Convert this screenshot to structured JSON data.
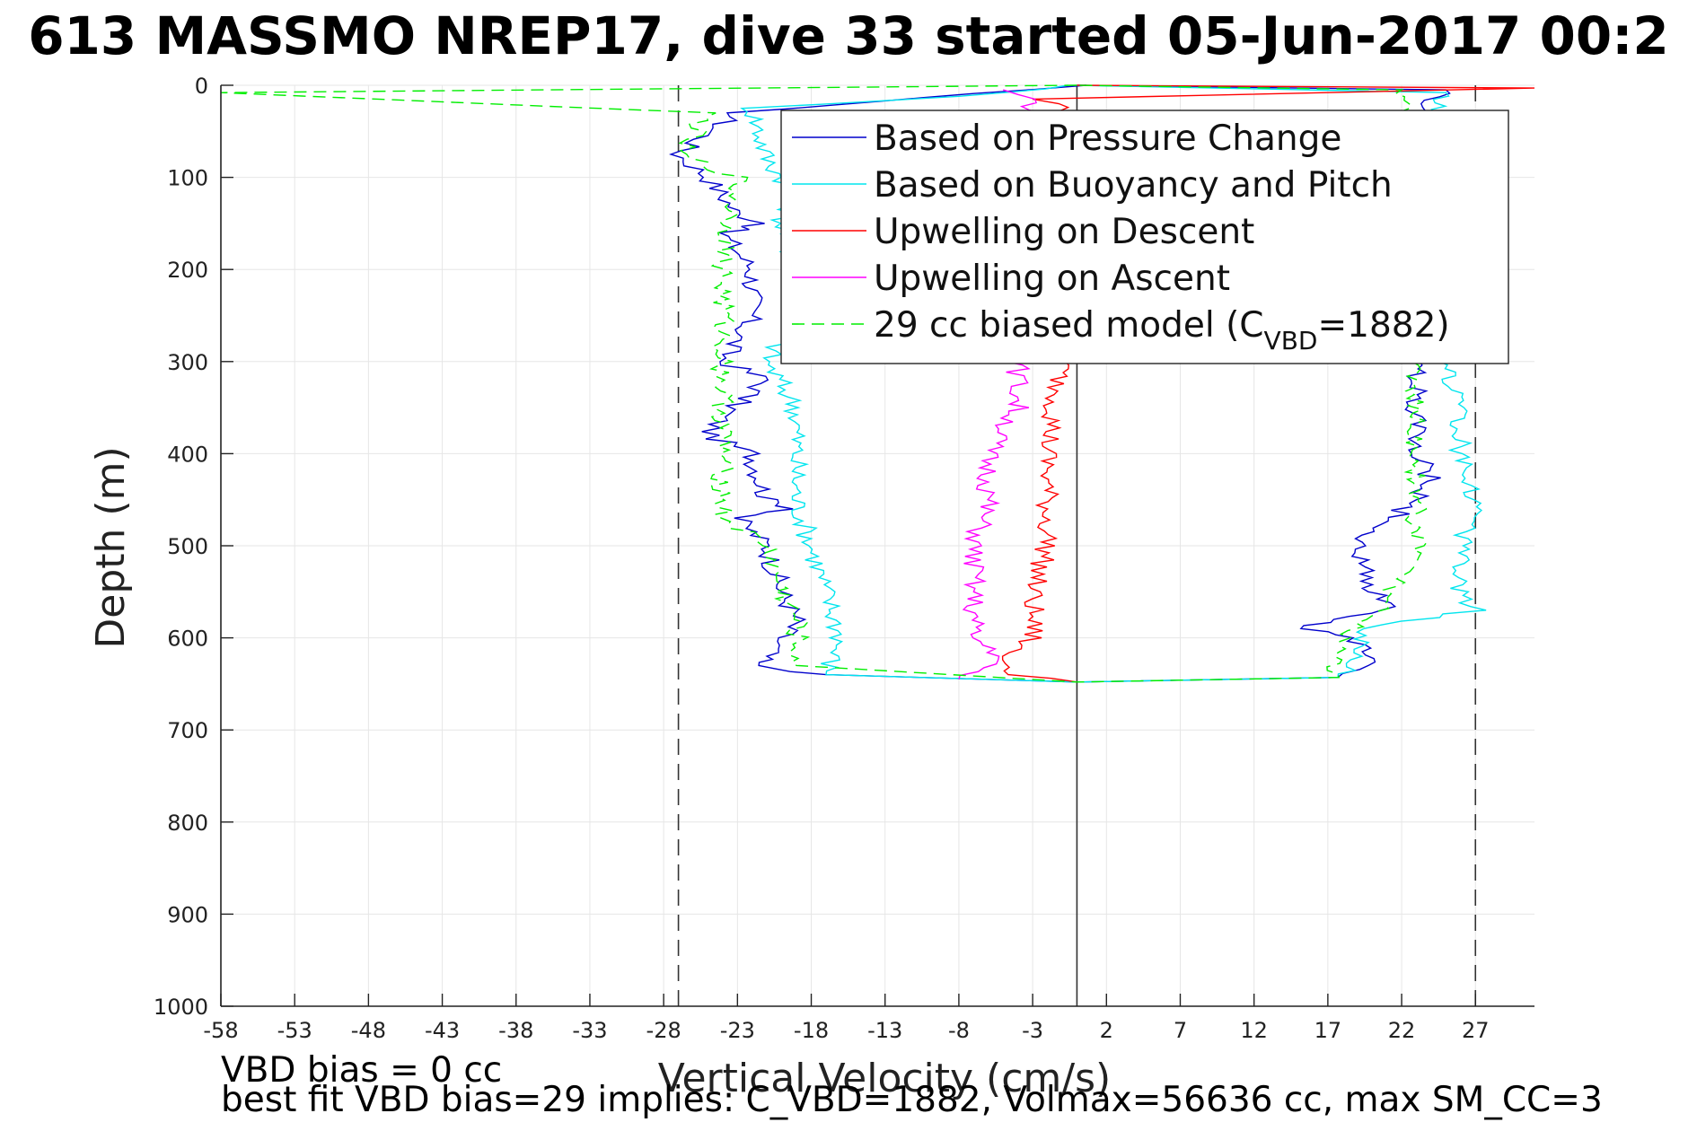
{
  "chart_data": {
    "type": "line",
    "title": "613 MASSMO NREP17, dive 33 started 05-Jun-2017 00:2",
    "xlabel": "Vertical Velocity (cm/s)",
    "ylabel": "Depth (m)",
    "xlim": [
      -58,
      31
    ],
    "ylim": [
      0,
      1000
    ],
    "y_reversed": true,
    "grid": true,
    "x_ticks": [
      -58,
      -53,
      -48,
      -43,
      -38,
      -33,
      -28,
      -23,
      -18,
      -13,
      -8,
      -3,
      2,
      7,
      12,
      17,
      22,
      27
    ],
    "y_ticks": [
      0,
      100,
      200,
      300,
      400,
      500,
      600,
      700,
      800,
      900,
      1000
    ],
    "legend_position": "top-right",
    "reference_lines": [
      {
        "type": "vertical",
        "x": -27,
        "style": "dashed",
        "color": "#333333"
      },
      {
        "type": "vertical",
        "x": 27,
        "style": "dashed",
        "color": "#333333"
      },
      {
        "type": "vertical",
        "x": 0,
        "style": "solid",
        "color": "#333333"
      }
    ],
    "series": [
      {
        "name": "Based on Pressure Change",
        "color": "#0000cc",
        "style": "solid",
        "points": [
          [
            0,
            0
          ],
          [
            -7,
            9
          ],
          [
            -23,
            30
          ],
          [
            -27,
            75
          ],
          [
            -25,
            100
          ],
          [
            -23,
            140
          ],
          [
            -21,
            150
          ],
          [
            -24,
            160
          ],
          [
            -22,
            200
          ],
          [
            -22,
            250
          ],
          [
            -24,
            300
          ],
          [
            -21,
            320
          ],
          [
            -24,
            360
          ],
          [
            -25,
            380
          ],
          [
            -22,
            400
          ],
          [
            -21,
            450
          ],
          [
            -19,
            460
          ],
          [
            -23,
            470
          ],
          [
            -21,
            500
          ],
          [
            -20,
            550
          ],
          [
            -19,
            580
          ],
          [
            -21,
            620
          ],
          [
            -22,
            630
          ],
          [
            -17,
            640
          ],
          [
            0,
            648
          ],
          [
            17,
            643
          ],
          [
            20,
            630
          ],
          [
            19,
            600
          ],
          [
            15,
            590
          ],
          [
            18,
            580
          ],
          [
            21,
            570
          ],
          [
            20,
            550
          ],
          [
            19,
            500
          ],
          [
            23,
            450
          ],
          [
            24,
            430
          ],
          [
            23,
            400
          ],
          [
            23,
            300
          ],
          [
            22,
            200
          ],
          [
            22,
            100
          ],
          [
            23,
            20
          ],
          [
            25,
            5
          ],
          [
            0,
            0
          ]
        ]
      },
      {
        "name": "Based on Buoyancy and Pitch",
        "color": "#00e5ee",
        "style": "solid",
        "points": [
          [
            0,
            0
          ],
          [
            -8,
            12
          ],
          [
            -22,
            25
          ],
          [
            -21,
            80
          ],
          [
            -19,
            120
          ],
          [
            -20,
            150
          ],
          [
            -19,
            200
          ],
          [
            -19,
            250
          ],
          [
            -21,
            300
          ],
          [
            -19,
            350
          ],
          [
            -19,
            400
          ],
          [
            -19,
            450
          ],
          [
            -18,
            500
          ],
          [
            -17,
            550
          ],
          [
            -16,
            600
          ],
          [
            -17,
            640
          ],
          [
            0,
            648
          ],
          [
            18,
            643
          ],
          [
            19,
            620
          ],
          [
            19,
            590
          ],
          [
            27,
            570
          ],
          [
            26,
            550
          ],
          [
            26,
            500
          ],
          [
            27,
            450
          ],
          [
            26,
            400
          ],
          [
            26,
            350
          ],
          [
            25,
            300
          ],
          [
            24,
            200
          ],
          [
            23,
            100
          ],
          [
            24,
            30
          ],
          [
            25,
            8
          ],
          [
            0,
            0
          ]
        ]
      },
      {
        "name": "Upwelling on Descent",
        "color": "#ff0000",
        "style": "solid",
        "points": [
          [
            0,
            0
          ],
          [
            31,
            3
          ],
          [
            -3,
            15
          ],
          [
            -1,
            20
          ],
          [
            -1,
            300
          ],
          [
            -2,
            400
          ],
          [
            -2,
            500
          ],
          [
            -3,
            550
          ],
          [
            -3,
            600
          ],
          [
            -5,
            620
          ],
          [
            -4,
            640
          ],
          [
            0,
            648
          ]
        ]
      },
      {
        "name": "Upwelling on Ascent",
        "color": "#ff00ff",
        "style": "solid",
        "points": [
          [
            -5,
            5
          ],
          [
            -4,
            10
          ],
          [
            -3,
            15
          ],
          [
            -4,
            300
          ],
          [
            -4,
            350
          ],
          [
            -6,
            400
          ],
          [
            -6,
            450
          ],
          [
            -7,
            500
          ],
          [
            -7,
            550
          ],
          [
            -7,
            600
          ],
          [
            -5,
            620
          ],
          [
            -8,
            645
          ]
        ]
      },
      {
        "name": "29 cc biased model (C_VBD=1882)",
        "color": "#00ee00",
        "style": "dashed",
        "points": [
          [
            0,
            0
          ],
          [
            -58,
            8
          ],
          [
            -25,
            30
          ],
          [
            -27,
            75
          ],
          [
            -23,
            100
          ],
          [
            -24,
            200
          ],
          [
            -24,
            300
          ],
          [
            -24,
            400
          ],
          [
            -24,
            470
          ],
          [
            -21,
            500
          ],
          [
            -20,
            550
          ],
          [
            -19,
            580
          ],
          [
            -19,
            630
          ],
          [
            0,
            648
          ],
          [
            17,
            643
          ],
          [
            18,
            620
          ],
          [
            18,
            600
          ],
          [
            20,
            580
          ],
          [
            23,
            500
          ],
          [
            23,
            400
          ],
          [
            23,
            300
          ],
          [
            22,
            200
          ],
          [
            22,
            100
          ],
          [
            22,
            20
          ],
          [
            22,
            5
          ],
          [
            0,
            0
          ]
        ]
      }
    ],
    "legend": {
      "entries": [
        {
          "label": "Based on Pressure Change",
          "color": "#0000cc",
          "style": "solid"
        },
        {
          "label": "Based on Buoyancy and Pitch",
          "color": "#00e5ee",
          "style": "solid"
        },
        {
          "label": "Upwelling on Descent",
          "color": "#ff0000",
          "style": "solid"
        },
        {
          "label": "Upwelling on Ascent",
          "color": "#ff00ff",
          "style": "solid"
        },
        {
          "label_prefix": "29 cc biased model (C",
          "label_sub": "VBD",
          "label_suffix": "=1882)",
          "color": "#00ee00",
          "style": "dashed"
        }
      ]
    },
    "annotations": [
      "VBD bias = 0 cc",
      "best fit VBD bias=29 implies: C_VBD=1882, Volmax=56636 cc, max SM_CC=3"
    ]
  }
}
